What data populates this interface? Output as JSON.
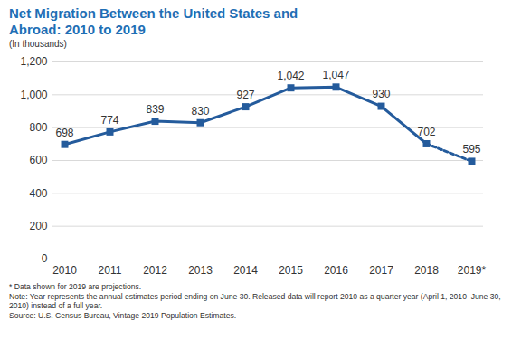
{
  "chart_data": {
    "type": "line",
    "title": "Net Migration Between the United States and Abroad: 2010 to 2019",
    "subtitle": "(In thousands)",
    "categories": [
      "2010",
      "2011",
      "2012",
      "2013",
      "2014",
      "2015",
      "2016",
      "2017",
      "2018",
      "2019*"
    ],
    "series": [
      {
        "color": "#245b9c",
        "line_style": "solid",
        "marker": "square",
        "values": [
          698,
          774,
          839,
          830,
          927,
          1042,
          1047,
          930,
          702,
          null
        ],
        "value_labels": [
          "698",
          "774",
          "839",
          "830",
          "927",
          "1,042",
          "1,047",
          "930",
          "702",
          null
        ]
      },
      {
        "color": "#245b9c",
        "line_style": "dashed",
        "marker": "square",
        "values": [
          null,
          null,
          null,
          null,
          null,
          null,
          null,
          null,
          702,
          595
        ],
        "value_labels": [
          null,
          null,
          null,
          null,
          null,
          null,
          null,
          null,
          "702",
          "595"
        ]
      }
    ],
    "ylim": [
      0,
      1200
    ],
    "yticks": [
      0,
      200,
      400,
      600,
      800,
      {
        "value": 1000,
        "label": "1,000"
      },
      {
        "value": 1200,
        "label": "1,200"
      }
    ],
    "grid": true,
    "data_labels": true,
    "annotations": [
      "* Data shown for 2019 are projections.",
      "Note: Year represents the annual estimates period ending on June 30. Released data will report 2010 as a quarter year (April 1, 2010–June 30, 2010) instead of a full year.",
      "Source: U.S. Census Bureau, Vintage 2019 Population Estimates."
    ]
  }
}
